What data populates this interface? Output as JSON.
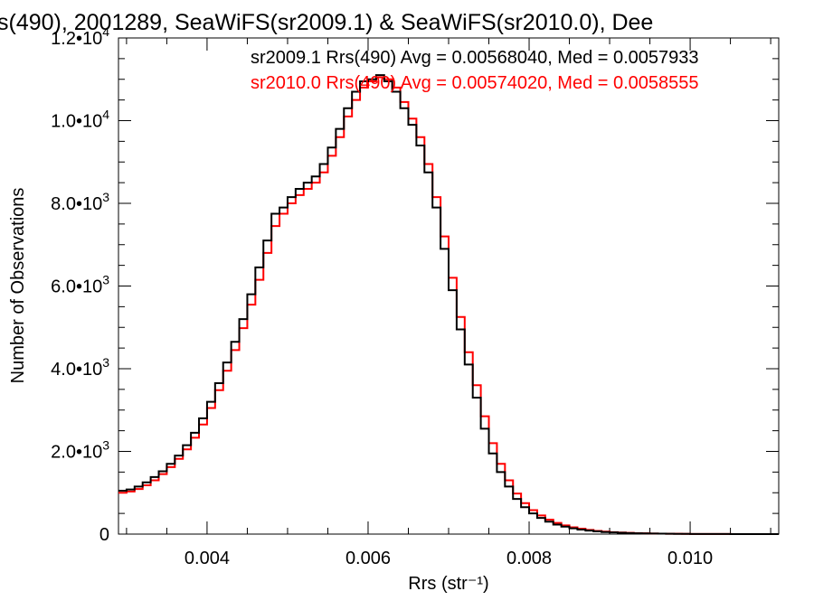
{
  "chart_data": {
    "type": "line",
    "step": true,
    "title": "s(490), 2001289, SeaWiFS(sr2009.1) & SeaWiFS(sr2010.0), Dee",
    "xlabel": "Rrs (str⁻¹)",
    "ylabel": "Number of Observations",
    "xlim": [
      0.0029,
      0.0111
    ],
    "ylim": [
      0,
      12000
    ],
    "x_ticks": [
      {
        "value": 0.004,
        "label": "0.004"
      },
      {
        "value": 0.006,
        "label": "0.006"
      },
      {
        "value": 0.008,
        "label": "0.008"
      },
      {
        "value": 0.01,
        "label": "0.010"
      }
    ],
    "y_ticks": [
      {
        "value": 0,
        "label": "0",
        "exp": ""
      },
      {
        "value": 2000,
        "label": "2.0•10",
        "exp": "3"
      },
      {
        "value": 4000,
        "label": "4.0•10",
        "exp": "3"
      },
      {
        "value": 6000,
        "label": "6.0•10",
        "exp": "3"
      },
      {
        "value": 8000,
        "label": "8.0•10",
        "exp": "3"
      },
      {
        "value": 10000,
        "label": "1.0•10",
        "exp": "4"
      },
      {
        "value": 12000,
        "label": "1.2•10",
        "exp": "4"
      }
    ],
    "legend_placement": "top-right",
    "x": [
      0.0029,
      0.003,
      0.0031,
      0.0032,
      0.0033,
      0.0034,
      0.0035,
      0.0036,
      0.0037,
      0.0038,
      0.0039,
      0.004,
      0.0041,
      0.0042,
      0.0043,
      0.0044,
      0.0045,
      0.0046,
      0.0047,
      0.0048,
      0.0049,
      0.005,
      0.0051,
      0.0052,
      0.0053,
      0.0054,
      0.0055,
      0.0056,
      0.0057,
      0.0058,
      0.0059,
      0.006,
      0.0061,
      0.0062,
      0.0063,
      0.0064,
      0.0065,
      0.0066,
      0.0067,
      0.0068,
      0.0069,
      0.007,
      0.0071,
      0.0072,
      0.0073,
      0.0074,
      0.0075,
      0.0076,
      0.0077,
      0.0078,
      0.0079,
      0.008,
      0.0081,
      0.0082,
      0.0083,
      0.0084,
      0.0085,
      0.0086,
      0.0087,
      0.0088,
      0.0089,
      0.009,
      0.0091,
      0.0092,
      0.0093,
      0.0094,
      0.0095,
      0.0096,
      0.0097,
      0.0098,
      0.0099,
      0.01,
      0.0101,
      0.0102,
      0.0103,
      0.0104,
      0.0105,
      0.0106,
      0.0107,
      0.0108,
      0.0109,
      0.011
    ],
    "series": [
      {
        "name": "sr2009.1",
        "legend": "sr2009.1 Rrs(490) Avg = 0.00568040, Med = 0.0057933",
        "color": "#000000",
        "values": [
          1050,
          1080,
          1150,
          1250,
          1380,
          1520,
          1700,
          1900,
          2150,
          2450,
          2800,
          3200,
          3650,
          4150,
          4650,
          5200,
          5800,
          6450,
          7100,
          7750,
          7900,
          8150,
          8350,
          8500,
          8650,
          8950,
          9350,
          9800,
          10300,
          10700,
          10950,
          11000,
          11100,
          10950,
          10700,
          10300,
          9900,
          9400,
          8750,
          7900,
          6900,
          5900,
          4950,
          4100,
          3300,
          2550,
          1950,
          1500,
          1150,
          850,
          650,
          500,
          390,
          300,
          230,
          180,
          140,
          110,
          85,
          65,
          50,
          40,
          32,
          25,
          20,
          16,
          13,
          10,
          8,
          6,
          5,
          4,
          3,
          3,
          2,
          2,
          1,
          1,
          1,
          1,
          1,
          0
        ]
      },
      {
        "name": "sr2010.0",
        "legend": "sr2010.0 Rrs(490) Avg = 0.00574020, Med = 0.0058555",
        "color": "#ff0000",
        "values": [
          1000,
          1030,
          1090,
          1180,
          1300,
          1450,
          1620,
          1820,
          2050,
          2330,
          2650,
          3050,
          3480,
          3950,
          4450,
          4980,
          5550,
          6150,
          6800,
          7450,
          7750,
          8000,
          8200,
          8350,
          8500,
          8750,
          9150,
          9600,
          10100,
          10500,
          10800,
          10950,
          11050,
          11000,
          10800,
          10450,
          10050,
          9600,
          8950,
          8150,
          7200,
          6200,
          5250,
          4400,
          3600,
          2850,
          2200,
          1700,
          1300,
          980,
          750,
          580,
          450,
          350,
          270,
          210,
          165,
          130,
          100,
          77,
          60,
          47,
          37,
          29,
          23,
          18,
          14,
          11,
          9,
          7,
          5,
          4,
          3,
          3,
          2,
          2,
          1,
          1,
          1,
          1,
          1,
          0
        ]
      }
    ]
  }
}
